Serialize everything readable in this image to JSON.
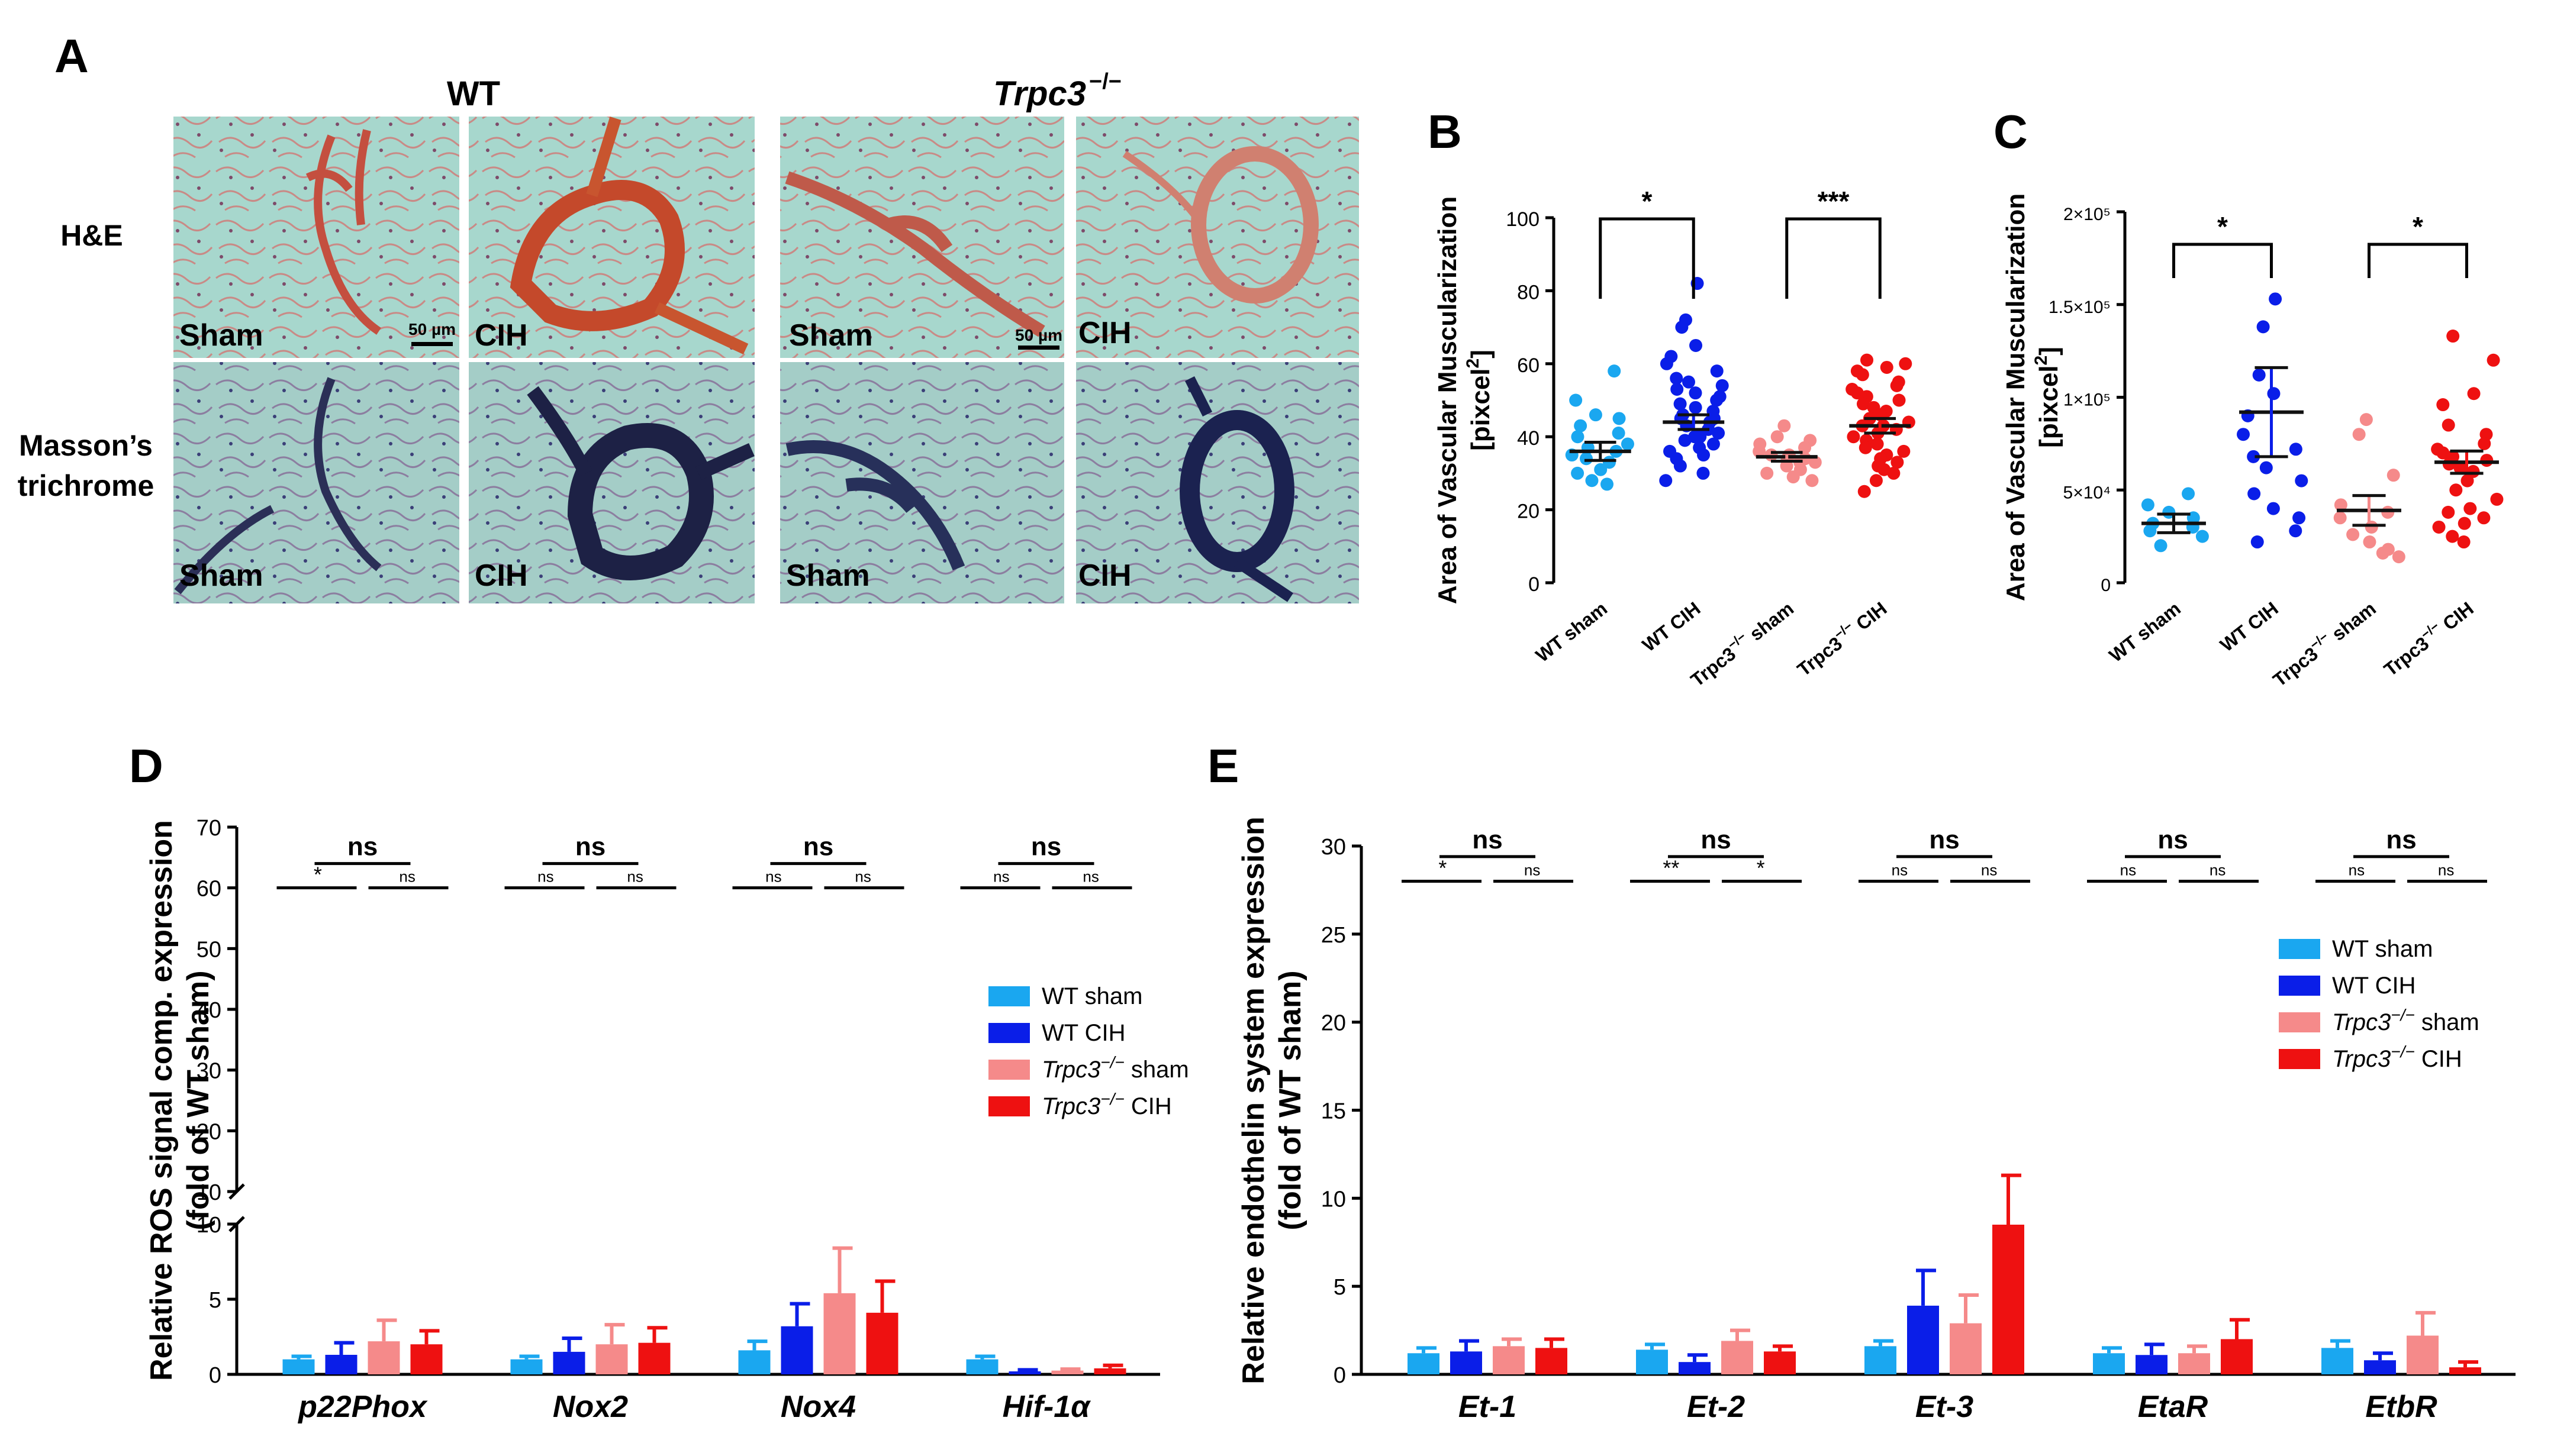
{
  "panel_labels": {
    "a": "A",
    "b": "B",
    "c": "C",
    "d": "D",
    "e": "E"
  },
  "histology": {
    "group_wt": "WT",
    "group_ko": "Trpc3",
    "group_ko_sup": "−/−",
    "row1_label": "H&E",
    "row2_label_line1": "Masson’s",
    "row2_label_line2": "trichrome",
    "tile_labels": [
      "Sham",
      "CIH",
      "Sham",
      "CIH",
      "Sham",
      "CIH",
      "Sham",
      "CIH"
    ],
    "scalebar_label": "50 µm"
  },
  "colors": {
    "wt_sham": "#1aa7f0",
    "wt_cih": "#0a1ee8",
    "ko_sham": "#f58a8a",
    "ko_cih": "#ee1111",
    "he_bg": "#9fd3c9",
    "masson_bg": "#9ec9c2"
  },
  "chart_data": [
    {
      "id": "B",
      "type": "scatter",
      "ylabel_line1": "Area of Vascular Muscularization",
      "ylabel_line2": "[pixcel",
      "ylabel_sup": "2",
      "ylabel_tail": "]",
      "ylim": [
        0,
        100
      ],
      "yticks": [
        "0",
        "20",
        "40",
        "60",
        "80",
        "100"
      ],
      "ytick_values": [
        0,
        20,
        40,
        60,
        80,
        100
      ],
      "categories": [
        "WT sham",
        "WT CIH",
        "Trpc3",
        "Trpc3"
      ],
      "category_suffix": [
        "",
        "",
        " sham",
        " CIH"
      ],
      "ko_sup": "−/−",
      "means": [
        36,
        44,
        34.5,
        43
      ],
      "sems": [
        2.5,
        2,
        1.2,
        2
      ],
      "series": [
        {
          "name": "WT sham",
          "values": [
            58,
            50,
            46,
            45,
            43,
            41,
            40,
            38,
            37,
            36,
            35,
            34,
            33,
            31,
            30,
            28,
            27
          ]
        },
        {
          "name": "WT CIH",
          "values": [
            82,
            72,
            70,
            65,
            62,
            60,
            58,
            56,
            55,
            54,
            53,
            52,
            51,
            50,
            49,
            48,
            47,
            46,
            45,
            45,
            44,
            43,
            42,
            41,
            40,
            40,
            39,
            38,
            37,
            36,
            35,
            34,
            32,
            30,
            28
          ]
        },
        {
          "name": "Trpc3-/- sham",
          "values": [
            43,
            40,
            39,
            38,
            37,
            36,
            35,
            35,
            34,
            34,
            33,
            33,
            32,
            31,
            30,
            29,
            28
          ]
        },
        {
          "name": "Trpc3-/- CIH",
          "values": [
            61,
            60,
            59,
            58,
            57,
            55,
            54,
            53,
            52,
            51,
            50,
            49,
            48,
            47,
            46,
            45,
            44,
            43,
            43,
            42,
            41,
            40,
            39,
            38,
            37,
            36,
            35,
            34,
            33,
            32,
            31,
            30,
            28,
            25
          ]
        }
      ],
      "sig": [
        {
          "from": 0,
          "to": 1,
          "label": "*"
        },
        {
          "from": 2,
          "to": 3,
          "label": "***"
        }
      ]
    },
    {
      "id": "C",
      "type": "scatter",
      "ylabel_line1": "Area of Vascular Muscularization",
      "ylabel_line2": "[pixcel",
      "ylabel_sup": "2",
      "ylabel_tail": "]",
      "ylim": [
        0,
        200000
      ],
      "yticks": [
        "0",
        "5×10⁴",
        "1×10⁵",
        "1.5×10⁵",
        "2×10⁵"
      ],
      "ytick_values": [
        0,
        50000,
        100000,
        150000,
        200000
      ],
      "categories": [
        "WT sham",
        "WT CIH",
        "Trpc3",
        "Trpc3"
      ],
      "category_suffix": [
        "",
        "",
        " sham",
        " CIH"
      ],
      "ko_sup": "−/−",
      "means": [
        32000,
        92000,
        39000,
        65000
      ],
      "sems": [
        5000,
        24000,
        8000,
        6000
      ],
      "series": [
        {
          "name": "WT sham",
          "values": [
            48000,
            42000,
            38000,
            35000,
            32000,
            30000,
            28000,
            25000,
            20000
          ]
        },
        {
          "name": "WT CIH",
          "values": [
            153000,
            138000,
            112000,
            102000,
            90000,
            80000,
            72000,
            68000,
            62000,
            55000,
            48000,
            40000,
            35000,
            28000,
            22000
          ]
        },
        {
          "name": "Trpc3-/- sham",
          "values": [
            88000,
            80000,
            58000,
            42000,
            38000,
            35000,
            30000,
            26000,
            22000,
            18000,
            16000,
            14000
          ]
        },
        {
          "name": "Trpc3-/- CIH",
          "values": [
            133000,
            120000,
            102000,
            96000,
            85000,
            80000,
            75000,
            72000,
            70000,
            68000,
            66000,
            64000,
            62000,
            60000,
            55000,
            50000,
            45000,
            40000,
            38000,
            35000,
            32000,
            30000,
            25000,
            22000
          ]
        }
      ],
      "sig": [
        {
          "from": 0,
          "to": 1,
          "label": "*"
        },
        {
          "from": 2,
          "to": 3,
          "label": "*"
        }
      ]
    },
    {
      "id": "D",
      "type": "bar",
      "ylabel_line1": "Relative ROS signal comp. expression",
      "ylabel_line2": "(fold of WT sham)",
      "ylim_lower": [
        0,
        10
      ],
      "ylim_upper": [
        10,
        70
      ],
      "yticks_lower": [
        "0",
        "5",
        "10"
      ],
      "ytick_lower_values": [
        0,
        5,
        10
      ],
      "yticks_upper": [
        "10",
        "20",
        "30",
        "40",
        "50",
        "60",
        "70"
      ],
      "ytick_upper_values": [
        10,
        20,
        30,
        40,
        50,
        60,
        70
      ],
      "categories": [
        "p22Phox",
        "Nox2",
        "Nox4",
        "Hif-1α"
      ],
      "series": [
        {
          "name": "WT sham",
          "values": [
            1.0,
            1.0,
            1.6,
            1.0
          ],
          "errors": [
            0.2,
            0.2,
            0.6,
            0.2
          ]
        },
        {
          "name": "WT CIH",
          "values": [
            1.3,
            1.5,
            3.2,
            0.2
          ],
          "errors": [
            0.8,
            0.9,
            1.5,
            0.1
          ]
        },
        {
          "name": "Trpc3-/- sham",
          "values": [
            2.2,
            2.0,
            5.4,
            0.25
          ],
          "errors": [
            1.4,
            1.3,
            3.0,
            0.1
          ]
        },
        {
          "name": "Trpc3-/- CIH",
          "values": [
            2.0,
            2.1,
            4.1,
            0.4
          ],
          "errors": [
            0.9,
            1.0,
            2.1,
            0.2
          ]
        }
      ],
      "sig_top": [
        "ns",
        "ns",
        "ns",
        "ns"
      ],
      "sig_left": [
        "*",
        "ns",
        "ns",
        "ns"
      ],
      "sig_right": [
        "ns",
        "ns",
        "ns",
        "ns"
      ],
      "legend": [
        "WT sham",
        "WT CIH",
        "Trpc3",
        "Trpc3"
      ],
      "legend_suffix": [
        "",
        "",
        " sham",
        " CIH"
      ],
      "ko_sup": "−/−"
    },
    {
      "id": "E",
      "type": "bar",
      "ylabel_line1": "Relative endothelin system expression",
      "ylabel_line2": "(fold of WT sham)",
      "ylim": [
        0,
        30
      ],
      "yticks": [
        "0",
        "5",
        "10",
        "15",
        "20",
        "25",
        "30"
      ],
      "ytick_values": [
        0,
        5,
        10,
        15,
        20,
        25,
        30
      ],
      "categories": [
        "Et-1",
        "Et-2",
        "Et-3",
        "EtaR",
        "EtbR"
      ],
      "series": [
        {
          "name": "WT sham",
          "values": [
            1.2,
            1.4,
            1.6,
            1.2,
            1.5
          ],
          "errors": [
            0.3,
            0.3,
            0.3,
            0.3,
            0.4
          ]
        },
        {
          "name": "WT CIH",
          "values": [
            1.3,
            0.7,
            3.9,
            1.1,
            0.8
          ],
          "errors": [
            0.6,
            0.4,
            2.0,
            0.6,
            0.4
          ]
        },
        {
          "name": "Trpc3-/- sham",
          "values": [
            1.6,
            1.9,
            2.9,
            1.2,
            2.2
          ],
          "errors": [
            0.4,
            0.6,
            1.6,
            0.4,
            1.3
          ]
        },
        {
          "name": "Trpc3-/- CIH",
          "values": [
            1.5,
            1.3,
            8.5,
            2.0,
            0.4
          ],
          "errors": [
            0.5,
            0.3,
            2.8,
            1.1,
            0.3
          ]
        }
      ],
      "sig_top": [
        "ns",
        "ns",
        "ns",
        "ns",
        "ns"
      ],
      "sig_left": [
        "*",
        "**",
        "ns",
        "ns",
        "ns"
      ],
      "sig_right": [
        "ns",
        "*",
        "ns",
        "ns",
        "ns"
      ],
      "legend": [
        "WT sham",
        "WT CIH",
        "Trpc3",
        "Trpc3"
      ],
      "legend_suffix": [
        "",
        "",
        " sham",
        " CIH"
      ],
      "ko_sup": "−/−"
    }
  ]
}
